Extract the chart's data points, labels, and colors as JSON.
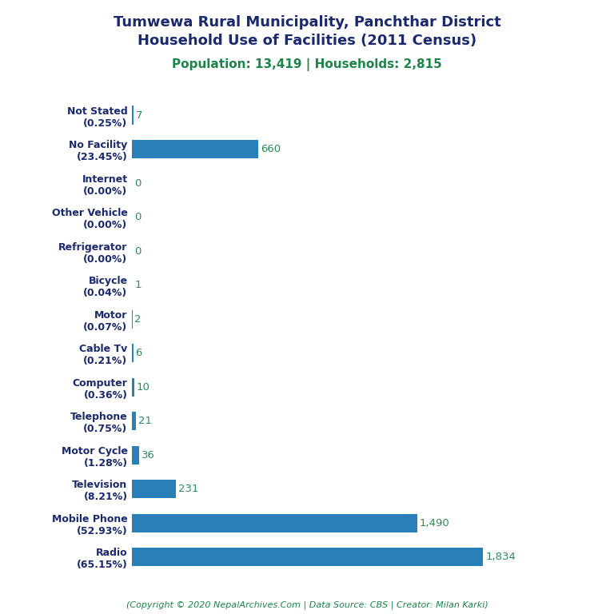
{
  "title_line1": "Tumwewa Rural Municipality, Panchthar District",
  "title_line2": "Household Use of Facilities (2011 Census)",
  "subtitle": "Population: 13,419 | Households: 2,815",
  "footer": "(Copyright © 2020 NepalArchives.Com | Data Source: CBS | Creator: Milan Karki)",
  "categories": [
    "Not Stated\n(0.25%)",
    "No Facility\n(23.45%)",
    "Internet\n(0.00%)",
    "Other Vehicle\n(0.00%)",
    "Refrigerator\n(0.00%)",
    "Bicycle\n(0.04%)",
    "Motor\n(0.07%)",
    "Cable Tv\n(0.21%)",
    "Computer\n(0.36%)",
    "Telephone\n(0.75%)",
    "Motor Cycle\n(1.28%)",
    "Television\n(8.21%)",
    "Mobile Phone\n(52.93%)",
    "Radio\n(65.15%)"
  ],
  "values": [
    7,
    660,
    0,
    0,
    0,
    1,
    2,
    6,
    10,
    21,
    36,
    231,
    1490,
    1834
  ],
  "value_labels": [
    "7",
    "660",
    "0",
    "0",
    "0",
    "1",
    "2",
    "6",
    "10",
    "21",
    "36",
    "231",
    "1,490",
    "1,834"
  ],
  "bar_color": "#2980b9",
  "title_color": "#1a2a6c",
  "subtitle_color": "#1e8449",
  "footer_color": "#1e8449",
  "label_color": "#1a2a6c",
  "value_color": "#2e8b57",
  "background_color": "#ffffff",
  "xlim": [
    0,
    2100
  ]
}
